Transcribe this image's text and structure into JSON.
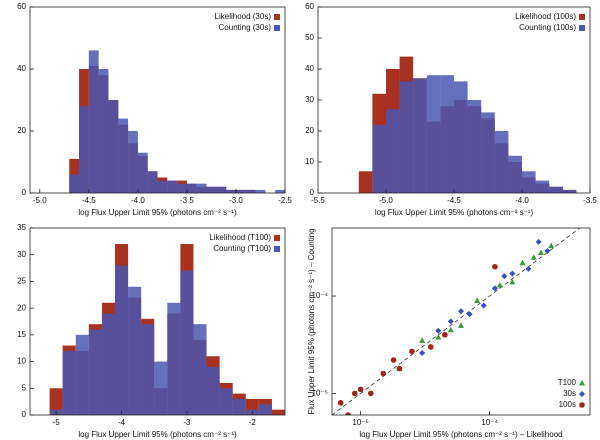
{
  "chart_data": [
    {
      "type": "histogram",
      "xlabel": "log Flux Upper Limit 95% (photons cm⁻² s⁻¹)",
      "bins": [
        -4.7,
        -4.6,
        -4.5,
        -4.4,
        -4.3,
        -4.2,
        -4.1,
        -4.0,
        -3.9,
        -3.8,
        -3.7,
        -3.6,
        -3.5,
        -3.4,
        -3.3,
        -3.2,
        -3.1,
        -3.0,
        -2.9,
        -2.8,
        -2.7,
        -2.6,
        -2.5
      ],
      "series": [
        {
          "name": "Likelihood (30s)",
          "color": "#a83222",
          "values": [
            11,
            40,
            41,
            38,
            30,
            22,
            16,
            12,
            7,
            5,
            4,
            4,
            3,
            2,
            2,
            2,
            1,
            1,
            1,
            0,
            0,
            0
          ]
        },
        {
          "name": "Counting (30s)",
          "color": "#4a56b0",
          "values": [
            6,
            28,
            46,
            40,
            30,
            24,
            20,
            13,
            7,
            4,
            4,
            3,
            3,
            3,
            2,
            2,
            1,
            1,
            1,
            1,
            0,
            1
          ]
        }
      ],
      "xlim": [
        -5.1,
        -2.5
      ],
      "xticks": [
        {
          "value": -5,
          "label": "-5.0"
        },
        -4.5,
        {
          "value": -4,
          "label": "-4.0"
        },
        -3.5,
        {
          "value": -3,
          "label": "-3.0"
        },
        -2.5
      ],
      "ylim": [
        0,
        60
      ],
      "yticks": [
        0,
        20,
        40,
        60
      ],
      "legend": "upper right"
    },
    {
      "type": "histogram",
      "xlabel": "log Flux Upper Limit 95% (photons cm⁻² s⁻¹)",
      "bins": [
        -5.2,
        -5.1,
        -5.0,
        -4.9,
        -4.8,
        -4.7,
        -4.6,
        -4.5,
        -4.4,
        -4.3,
        -4.2,
        -4.1,
        -4.0,
        -3.9,
        -3.8,
        -3.7,
        -3.6
      ],
      "series": [
        {
          "name": "Likelihood (100s)",
          "color": "#a83222",
          "values": [
            7,
            32,
            40,
            44,
            37,
            23,
            28,
            30,
            28,
            24,
            16,
            10,
            5,
            3,
            2,
            1
          ]
        },
        {
          "name": "Counting (100s)",
          "color": "#4a56b0",
          "values": [
            0,
            22,
            27,
            36,
            37,
            38,
            38,
            36,
            30,
            26,
            20,
            12,
            7,
            4,
            2,
            1
          ]
        }
      ],
      "xlim": [
        -5.5,
        -3.5
      ],
      "xticks": [
        -5.5,
        {
          "value": -5,
          "label": "-5.0"
        },
        -4.5,
        {
          "value": -4,
          "label": "-4.0"
        },
        -3.5
      ],
      "ylim": [
        0,
        60
      ],
      "yticks": [
        0,
        10,
        20,
        30,
        40,
        50,
        60
      ],
      "legend": "upper right"
    },
    {
      "type": "histogram",
      "xlabel": "log Flux Upper Limit 95% (photons cm⁻² s⁻¹)",
      "bins": [
        -5.1,
        -4.9,
        -4.7,
        -4.5,
        -4.3,
        -4.1,
        -3.9,
        -3.7,
        -3.5,
        -3.3,
        -3.1,
        -2.9,
        -2.7,
        -2.5,
        -2.3,
        -2.1,
        -1.9,
        -1.7,
        -1.5
      ],
      "series": [
        {
          "name": "Likelihood (T100)",
          "color": "#a83222",
          "values": [
            5,
            13,
            12,
            17,
            21,
            32,
            22,
            18,
            5,
            19,
            32,
            14,
            11,
            6,
            4,
            3,
            3,
            1
          ]
        },
        {
          "name": "Counting (T100)",
          "color": "#4a56b0",
          "values": [
            1,
            12,
            15,
            16,
            19,
            28,
            24,
            17,
            10,
            21,
            27,
            17,
            9,
            5,
            3,
            1,
            2,
            0
          ]
        }
      ],
      "xlim": [
        -5.4,
        -1.5
      ],
      "xticks": [
        -5,
        -4,
        -3,
        -2
      ],
      "ylim": [
        0,
        35
      ],
      "yticks": [
        0,
        5,
        10,
        15,
        20,
        25,
        30,
        35
      ],
      "legend": "upper right"
    },
    {
      "type": "scatter",
      "xlabel": "log Flux Upper Limit 95% (photons cm⁻² s⁻¹) – Likelihood",
      "ylabel": "Flux Upper Limit 95% (photons cm⁻² s⁻¹) – Counting",
      "log_x": true,
      "log_y": true,
      "xlim": [
        6e-06,
        0.0006
      ],
      "ylim": [
        6e-06,
        0.0005
      ],
      "xticks": [
        {
          "value": 1e-05,
          "label": "10⁻⁵"
        },
        {
          "value": 0.0001,
          "label": "10⁻⁴"
        }
      ],
      "yticks": [
        {
          "value": 1e-05,
          "label": "10⁻⁵"
        },
        {
          "value": 0.0001,
          "label": "10⁻⁴"
        }
      ],
      "legend": "lower right",
      "series": [
        {
          "name": "T100",
          "color": "#3a9a3a",
          "marker": "triangle",
          "x": [
            2e-05,
            3e-05,
            5e-05,
            8e-05,
            0.00012,
            0.00018,
            0.00025,
            0.0003,
            0.00015,
            6e-05,
            4e-05,
            0.00022
          ],
          "y": [
            1.8e-05,
            3.5e-05,
            4.5e-05,
            9e-05,
            0.00013,
            0.00022,
            0.00028,
            0.00033,
            0.00014,
            5e-05,
            3.8e-05,
            0.00025
          ]
        },
        {
          "name": "30s",
          "color": "#3a4fc0",
          "marker": "diamond",
          "x": [
            3e-05,
            4e-05,
            6e-05,
            9e-05,
            0.00011,
            0.00015,
            0.0002,
            0.00024,
            7e-05,
            5e-05,
            0.00013,
            0.00028
          ],
          "y": [
            2.6e-05,
            4.4e-05,
            7e-05,
            8e-05,
            0.00012,
            0.00017,
            0.00019,
            0.00036,
            6.5e-05,
            5.5e-05,
            0.00016,
            0.00029
          ]
        },
        {
          "name": "100s",
          "color": "#a02418",
          "marker": "circle",
          "x": [
            7e-06,
            8e-06,
            1e-05,
            1.2e-05,
            1.5e-05,
            2e-05,
            2.5e-05,
            3.5e-05,
            1.8e-05,
            9e-06,
            0.00011,
            4.5e-05
          ],
          "y": [
            8e-06,
            6e-06,
            1.1e-05,
            1e-05,
            1.6e-05,
            1.8e-05,
            2.7e-05,
            3e-05,
            2.2e-05,
            1e-05,
            0.0002,
            4e-05
          ]
        }
      ]
    }
  ]
}
